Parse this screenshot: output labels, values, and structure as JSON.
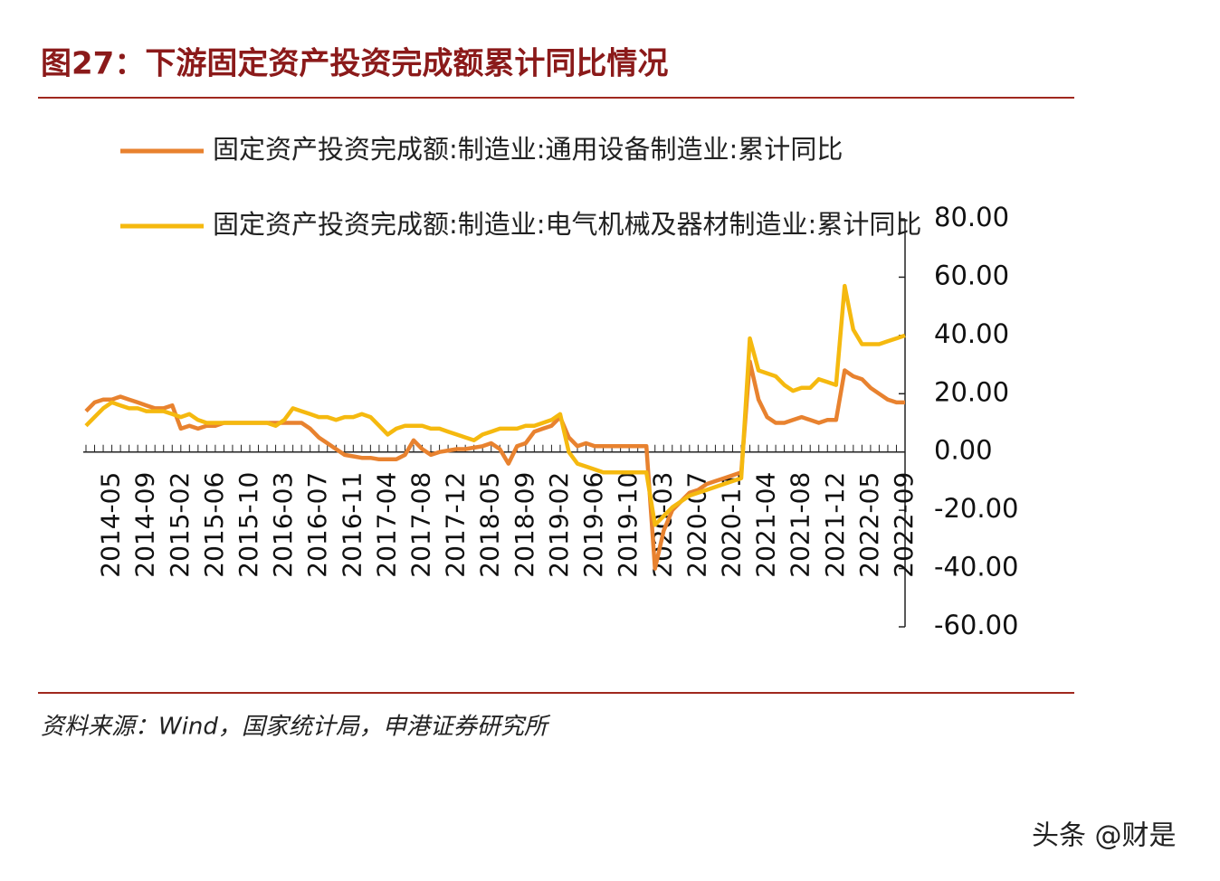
{
  "chart_data": {
    "type": "line",
    "title": "图27：下游固定资产投资完成额累计同比情况",
    "source": "资料来源：Wind，国家统计局，申港证券研究所",
    "watermark": "头条 @财是",
    "categories": [
      null,
      null,
      null,
      "2014-05",
      null,
      null,
      null,
      "2014-09",
      null,
      null,
      null,
      "2015-02",
      null,
      null,
      null,
      "2015-06",
      null,
      null,
      null,
      "2015-10",
      null,
      null,
      null,
      "2016-03",
      null,
      null,
      null,
      "2016-07",
      null,
      null,
      null,
      "2016-11",
      null,
      null,
      null,
      "2017-04",
      null,
      null,
      null,
      "2017-08",
      null,
      null,
      null,
      "2017-12",
      null,
      null,
      null,
      "2018-05",
      null,
      null,
      null,
      "2018-09",
      null,
      null,
      null,
      "2019-02",
      null,
      null,
      null,
      "2019-06",
      null,
      null,
      null,
      "2019-10",
      null,
      null,
      null,
      "2020-03",
      null,
      null,
      null,
      "2020-07",
      null,
      null,
      null,
      "2020-11",
      null,
      null,
      null,
      "2021-04",
      null,
      null,
      null,
      "2021-08",
      null,
      null,
      null,
      "2021-12",
      null,
      null,
      null,
      "2022-05",
      null,
      null,
      null,
      "2022-09"
    ],
    "series": [
      {
        "name": "固定资产投资完成额:制造业:通用设备制造业:累计同比",
        "color": "#e8822f",
        "values": [
          14,
          17,
          18,
          18,
          19,
          18,
          17,
          16,
          15,
          15,
          16,
          8,
          9,
          8,
          9,
          9,
          10,
          10,
          10,
          10,
          10,
          10,
          10,
          10,
          10,
          10,
          8,
          5,
          3,
          1,
          -1,
          -1.5,
          -2,
          -2,
          -2.5,
          -2.5,
          -2.5,
          -1,
          4,
          1,
          -1,
          0,
          0.5,
          1,
          1,
          1.5,
          2,
          3,
          1,
          -4,
          2,
          3,
          7,
          8,
          9,
          12,
          5,
          2,
          3,
          2,
          2,
          2,
          2,
          2,
          2,
          2,
          -40,
          -27,
          -20,
          -17,
          -14,
          -13,
          -11,
          -10,
          -9,
          -8,
          -7,
          31,
          18,
          12,
          10,
          10,
          11,
          12,
          11,
          10,
          11,
          11,
          28,
          26,
          25,
          22,
          20,
          18,
          17,
          17
        ]
      },
      {
        "name": "固定资产投资完成额:制造业:电气机械及器材制造业:累计同比",
        "color": "#f5b90f",
        "values": [
          9,
          12,
          15,
          17,
          16,
          15,
          15,
          14,
          14,
          14,
          13,
          12,
          13,
          11,
          10,
          10,
          10,
          10,
          10,
          10,
          10,
          10,
          9,
          11,
          15,
          14,
          13,
          12,
          12,
          11,
          12,
          12,
          13,
          12,
          9,
          6,
          8,
          9,
          9,
          9,
          8,
          8,
          7,
          6,
          5,
          4,
          6,
          7,
          8,
          8,
          8,
          9,
          9,
          10,
          11,
          13,
          0,
          -4,
          -5,
          -6,
          -7,
          -7,
          -7,
          -7,
          -7,
          -7,
          -25,
          -22,
          -19,
          -17,
          -15,
          -14,
          -13,
          -12,
          -11,
          -10,
          -9,
          39,
          28,
          27,
          26,
          23,
          21,
          22,
          22,
          25,
          24,
          23,
          57,
          42,
          37,
          37,
          37,
          38,
          39,
          40
        ]
      }
    ],
    "ylim": [
      -60,
      80
    ],
    "yticks": [
      {
        "value": 80,
        "label": "80.00"
      },
      {
        "value": 60,
        "label": "60.00"
      },
      {
        "value": 40,
        "label": "40.00"
      },
      {
        "value": 20,
        "label": "20.00"
      },
      {
        "value": 0,
        "label": "0.00"
      },
      {
        "value": -20,
        "label": "-20.00"
      },
      {
        "value": -40,
        "label": "-40.00"
      },
      {
        "value": -60,
        "label": "-60.00"
      }
    ],
    "grid": false
  }
}
